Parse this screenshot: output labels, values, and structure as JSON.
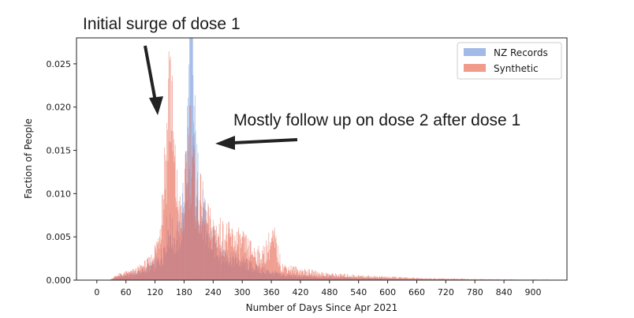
{
  "chart_data": {
    "type": "bar",
    "title": "",
    "xlabel": "Number of Days Since Apr 2021",
    "ylabel": "Faction of People",
    "xlim": [
      -42,
      970
    ],
    "ylim": [
      0,
      0.028
    ],
    "xticks": [
      0,
      60,
      120,
      180,
      240,
      300,
      360,
      420,
      480,
      540,
      600,
      660,
      720,
      780,
      840,
      900
    ],
    "yticks": [
      0.0,
      0.005,
      0.01,
      0.015,
      0.02,
      0.025
    ],
    "ytick_labels": [
      "0.000",
      "0.005",
      "0.010",
      "0.015",
      "0.020",
      "0.025"
    ],
    "legend_position": "top-right",
    "colors": {
      "NZ Records": "#6f95d9",
      "Synthetic": "#e8654e"
    },
    "series": [
      {
        "name": "NZ Records",
        "x": [
          40,
          80,
          110,
          125,
          135,
          142,
          148,
          155,
          165,
          172,
          178,
          184,
          188,
          192,
          196,
          200,
          205,
          212,
          220,
          230,
          245,
          260,
          280,
          300,
          320,
          350,
          380,
          420,
          480,
          560,
          660,
          780,
          880
        ],
        "values": [
          0.0003,
          0.0008,
          0.0015,
          0.002,
          0.003,
          0.005,
          0.006,
          0.005,
          0.0045,
          0.006,
          0.0085,
          0.013,
          0.019,
          0.026,
          0.0265,
          0.018,
          0.012,
          0.009,
          0.007,
          0.005,
          0.004,
          0.003,
          0.0025,
          0.002,
          0.0015,
          0.001,
          0.0006,
          0.0004,
          0.0003,
          0.0002,
          0.0001,
          5e-05,
          2e-05
        ]
      },
      {
        "name": "Synthetic",
        "x": [
          40,
          80,
          110,
          125,
          135,
          140,
          145,
          150,
          155,
          160,
          168,
          175,
          185,
          192,
          196,
          200,
          205,
          215,
          225,
          240,
          260,
          280,
          300,
          320,
          340,
          355,
          365,
          380,
          420,
          480,
          560,
          660,
          780,
          880
        ],
        "values": [
          0.0005,
          0.001,
          0.002,
          0.004,
          0.009,
          0.013,
          0.0165,
          0.0245,
          0.017,
          0.012,
          0.008,
          0.006,
          0.012,
          0.016,
          0.015,
          0.011,
          0.009,
          0.0085,
          0.0065,
          0.0055,
          0.005,
          0.0045,
          0.004,
          0.0032,
          0.0025,
          0.004,
          0.0045,
          0.0015,
          0.001,
          0.0006,
          0.0004,
          0.0002,
          0.0001,
          5e-05
        ]
      }
    ],
    "annotations": [
      "Initial surge of dose 1",
      "Mostly follow up on dose 2 after dose 1"
    ]
  }
}
